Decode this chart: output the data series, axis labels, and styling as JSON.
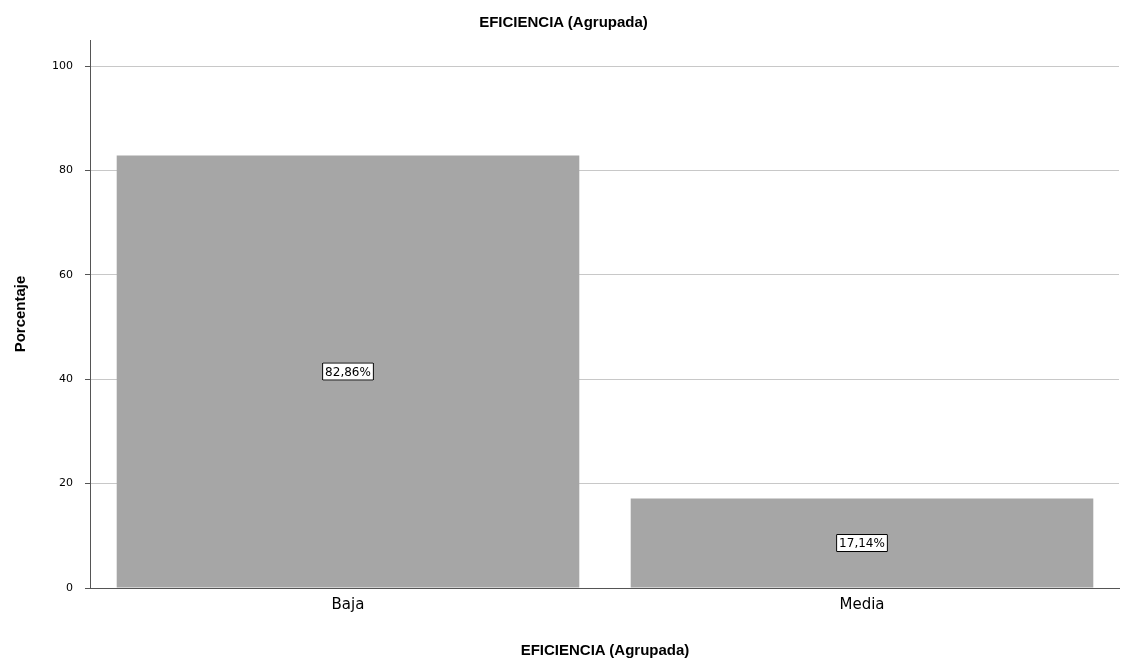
{
  "chart_data": {
    "type": "bar",
    "title": "EFICIENCIA (Agrupada)",
    "xlabel": "EFICIENCIA (Agrupada)",
    "ylabel": "Porcentaje",
    "categories": [
      "Baja",
      "Media"
    ],
    "values": [
      82.86,
      17.14
    ],
    "value_labels": [
      "82,86%",
      "17,14%"
    ],
    "color": "#a6a6a6",
    "ylim": [
      0,
      105
    ],
    "yticks": [
      0,
      20,
      40,
      60,
      80,
      100
    ],
    "grid": "y"
  }
}
